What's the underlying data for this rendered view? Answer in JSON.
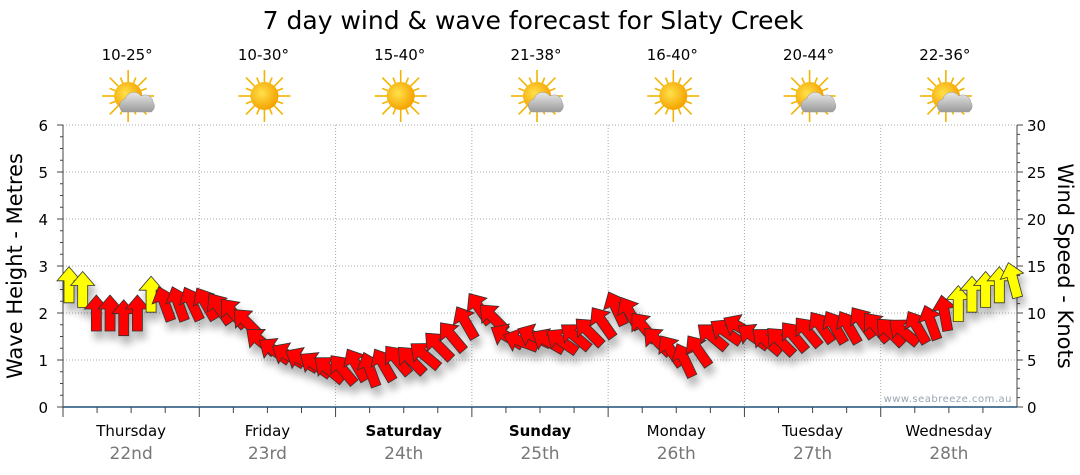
{
  "chart_data": {
    "type": "line",
    "title": "7 day wind & wave forecast for Slaty Creek",
    "ylabel_left": "Wave Height - Metres",
    "ylabel_right": "Wind Speed - Knots",
    "ylim_left": [
      0,
      6
    ],
    "yticks_left": [
      "0",
      "1",
      "2",
      "3",
      "4",
      "5",
      "6"
    ],
    "ylim_right": [
      0,
      30
    ],
    "yticks_right": [
      "0",
      "5",
      "10",
      "15",
      "20",
      "25",
      "30"
    ],
    "grid": true,
    "watermark": "www.seabreeze.com.au",
    "days": [
      {
        "name": "Thursday",
        "date": "22nd",
        "temp": "10-25°",
        "icon": "partly-cloudy",
        "bold": false
      },
      {
        "name": "Friday",
        "date": "23rd",
        "temp": "10-30°",
        "icon": "sunny",
        "bold": false
      },
      {
        "name": "Saturday",
        "date": "24th",
        "temp": "15-40°",
        "icon": "sunny",
        "bold": true
      },
      {
        "name": "Sunday",
        "date": "25th",
        "temp": "21-38°",
        "icon": "partly-cloudy",
        "bold": true
      },
      {
        "name": "Monday",
        "date": "26th",
        "temp": "16-40°",
        "icon": "sunny",
        "bold": false
      },
      {
        "name": "Tuesday",
        "date": "27th",
        "temp": "20-44°",
        "icon": "partly-cloudy",
        "bold": false
      },
      {
        "name": "Wednesday",
        "date": "28th",
        "temp": "22-36°",
        "icon": "partly-cloudy",
        "bold": false
      }
    ],
    "wind": {
      "speed_knots": [
        13,
        12.5,
        10,
        10,
        9.5,
        10,
        12,
        11,
        11,
        11,
        11,
        10.5,
        10,
        9,
        7,
        6,
        5.5,
        5,
        4.5,
        4,
        4,
        4.5,
        4,
        4.5,
        5,
        5,
        5.5,
        6.5,
        7.5,
        9,
        10.5,
        9.5,
        7.5,
        7,
        7.5,
        7,
        7,
        7.5,
        8,
        9,
        10.5,
        10,
        8.5,
        7,
        6,
        5,
        6,
        7.5,
        8,
        8.5,
        7.5,
        7,
        7,
        7.5,
        8,
        8.5,
        8.5,
        8.5,
        9,
        8.5,
        8,
        8,
        8.5,
        9,
        10,
        11,
        12,
        12.5,
        13,
        13.5
      ],
      "direction_deg": [
        0,
        0,
        0,
        0,
        0,
        0,
        0,
        -20,
        -20,
        -25,
        -30,
        -35,
        -40,
        -45,
        -50,
        -55,
        -60,
        -60,
        -55,
        -50,
        -40,
        -30,
        -20,
        -30,
        -40,
        -45,
        -50,
        -45,
        -40,
        -30,
        -35,
        -45,
        -60,
        -70,
        -65,
        -60,
        -55,
        -50,
        -45,
        -35,
        -25,
        -30,
        -40,
        -45,
        -35,
        -25,
        -35,
        -50,
        -55,
        -60,
        -55,
        -50,
        -45,
        -40,
        -40,
        -35,
        -30,
        -30,
        -35,
        -40,
        -45,
        -50,
        -30,
        -20,
        -10,
        0,
        0,
        0,
        0,
        -15
      ],
      "color": [
        "#ffff00",
        "#ffff00",
        "#ff0000",
        "#ff0000",
        "#ff0000",
        "#ff0000",
        "#ffff00",
        "#ff0000",
        "#ff0000",
        "#ff0000",
        "#ff0000",
        "#ff0000",
        "#ff0000",
        "#ff0000",
        "#ff0000",
        "#ff0000",
        "#ff0000",
        "#ff0000",
        "#ff0000",
        "#ff0000",
        "#ff0000",
        "#ff0000",
        "#ff0000",
        "#ff0000",
        "#ff0000",
        "#ff0000",
        "#ff0000",
        "#ff0000",
        "#ff0000",
        "#ff0000",
        "#ff0000",
        "#ff0000",
        "#ff0000",
        "#ff0000",
        "#ff0000",
        "#ff0000",
        "#ff0000",
        "#ff0000",
        "#ff0000",
        "#ff0000",
        "#ff0000",
        "#ff0000",
        "#ff0000",
        "#ff0000",
        "#ff0000",
        "#ff0000",
        "#ff0000",
        "#ff0000",
        "#ff0000",
        "#ff0000",
        "#ff0000",
        "#ff0000",
        "#ff0000",
        "#ff0000",
        "#ff0000",
        "#ff0000",
        "#ff0000",
        "#ff0000",
        "#ff0000",
        "#ff0000",
        "#ff0000",
        "#ff0000",
        "#ff0000",
        "#ff0000",
        "#ff0000",
        "#ffff00",
        "#ffff00",
        "#ffff00",
        "#ffff00",
        "#ffff00"
      ]
    }
  }
}
